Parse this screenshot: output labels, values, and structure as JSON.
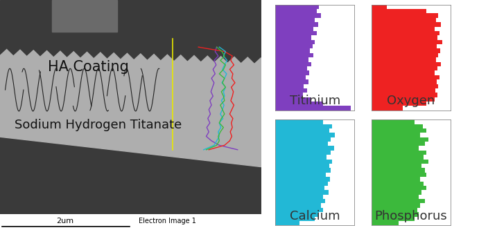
{
  "image": {
    "labels": [
      "HA Coating",
      "Sodium Hydrogen Titanate"
    ],
    "scale_bar": "2um",
    "caption": "Electron Image 1"
  },
  "chart_data": [
    {
      "type": "bar",
      "orientation": "horizontal",
      "title": "Titinium",
      "color": "#7f3fbf",
      "xlim": [
        0,
        100
      ],
      "tick_labels": false,
      "values": [
        55,
        52,
        58,
        50,
        54,
        48,
        52,
        45,
        50,
        47,
        44,
        48,
        42,
        45,
        40,
        43,
        38,
        42,
        36,
        40,
        35,
        45,
        60,
        95
      ]
    },
    {
      "type": "bar",
      "orientation": "horizontal",
      "title": "Oxygen",
      "color": "#ee2222",
      "xlim": [
        0,
        100
      ],
      "tick_labels": false,
      "values": [
        20,
        70,
        85,
        82,
        88,
        80,
        86,
        84,
        90,
        83,
        87,
        85,
        82,
        88,
        84,
        80,
        86,
        83,
        85,
        81,
        84,
        80,
        70,
        40
      ]
    },
    {
      "type": "bar",
      "orientation": "horizontal",
      "title": "Calcium",
      "color": "#22b8d6",
      "xlim": [
        0,
        100
      ],
      "tick_labels": false,
      "values": [
        60,
        72,
        68,
        75,
        70,
        66,
        74,
        70,
        65,
        72,
        68,
        70,
        64,
        69,
        66,
        62,
        67,
        60,
        63,
        58,
        60,
        55,
        50,
        30
      ]
    },
    {
      "type": "bar",
      "orientation": "horizontal",
      "title": "Phosphorus",
      "color": "#3cb93c",
      "xlim": [
        0,
        100
      ],
      "tick_labels": false,
      "values": [
        55,
        65,
        70,
        62,
        72,
        68,
        60,
        70,
        66,
        72,
        64,
        68,
        70,
        62,
        66,
        70,
        64,
        60,
        68,
        62,
        58,
        60,
        55,
        35
      ]
    }
  ]
}
